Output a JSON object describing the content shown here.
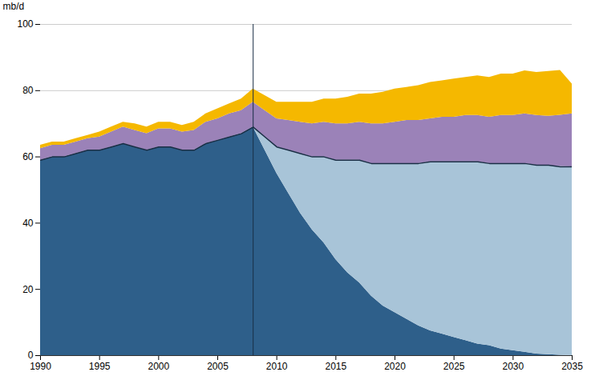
{
  "chart_data": {
    "type": "area",
    "stacked": true,
    "ylabel": "mb/d",
    "x": [
      1990,
      1991,
      1992,
      1993,
      1994,
      1995,
      1996,
      1997,
      1998,
      1999,
      2000,
      2001,
      2002,
      2003,
      2004,
      2005,
      2006,
      2007,
      2008,
      2009,
      2010,
      2011,
      2012,
      2013,
      2014,
      2015,
      2016,
      2017,
      2018,
      2019,
      2020,
      2021,
      2022,
      2023,
      2024,
      2025,
      2026,
      2027,
      2028,
      2029,
      2030,
      2031,
      2032,
      2033,
      2034,
      2035
    ],
    "series": [
      {
        "color": "#2e5f8a",
        "values": [
          59,
          60,
          60,
          61,
          62,
          62,
          63,
          64,
          63,
          62,
          63,
          63,
          62,
          62,
          64,
          65,
          66,
          67,
          69,
          62,
          55,
          49,
          43,
          38,
          34,
          29,
          25,
          22,
          18,
          15,
          13,
          11,
          9,
          7.5,
          6.5,
          5.5,
          4.5,
          3.5,
          3,
          2,
          1.5,
          1,
          0.5,
          0.3,
          0.1,
          0
        ]
      },
      {
        "color": "#a8c4d8",
        "values": [
          null,
          null,
          null,
          null,
          null,
          null,
          null,
          null,
          null,
          null,
          null,
          null,
          null,
          null,
          null,
          null,
          null,
          null,
          0,
          4,
          8,
          13,
          18,
          22,
          26,
          30,
          34,
          37,
          40,
          43,
          45,
          47,
          49,
          51,
          52,
          53,
          54,
          55,
          55,
          56,
          56.5,
          57,
          57,
          57,
          57,
          57
        ]
      },
      {
        "color": "#9b82b8",
        "values": [
          3.5,
          3.5,
          3.5,
          3.5,
          3.5,
          4,
          4.5,
          5,
          5,
          5,
          5.5,
          5.5,
          5.5,
          6,
          6.5,
          6.5,
          7,
          7,
          7.5,
          8,
          8.5,
          9,
          9.5,
          10,
          10.5,
          11,
          11,
          11.5,
          12,
          12,
          12.5,
          13,
          13,
          13,
          13.5,
          13.5,
          14,
          14,
          14,
          14.5,
          14.5,
          15,
          15,
          15,
          15.5,
          16
        ]
      },
      {
        "color": "#f5b800",
        "values": [
          1,
          1,
          1,
          1,
          1,
          1.5,
          1.5,
          1.5,
          2,
          2,
          2,
          2,
          2,
          2.5,
          2.5,
          3,
          3,
          3.5,
          4,
          4.5,
          5,
          5.5,
          6,
          6.5,
          7,
          7.5,
          8,
          8.5,
          9,
          9.5,
          10,
          10,
          10.5,
          11,
          11,
          11.5,
          11.5,
          12,
          12,
          12.5,
          12.5,
          13,
          13,
          13.5,
          13.5,
          9
        ]
      },
      {
        "type": "line",
        "color": "#1a2e45",
        "values": [
          59,
          60,
          60,
          61,
          62,
          62,
          63,
          64,
          63,
          62,
          63,
          63,
          62,
          62,
          64,
          65,
          66,
          67,
          69,
          66,
          63,
          62,
          61,
          60,
          60,
          59,
          59,
          59,
          58,
          58,
          58,
          58,
          58,
          58.5,
          58.5,
          58.5,
          58.5,
          58.5,
          58,
          58,
          58,
          58,
          57.5,
          57.5,
          57,
          57
        ]
      }
    ],
    "vline": {
      "x": 2008,
      "color": "#1a2e45"
    },
    "xlim": [
      1990,
      2035
    ],
    "xticks": [
      1990,
      1995,
      2000,
      2005,
      2010,
      2015,
      2020,
      2025,
      2030,
      2035
    ],
    "ylim": [
      0,
      100
    ],
    "yticks": [
      0,
      20,
      40,
      60,
      80,
      100
    ],
    "grid": true
  }
}
